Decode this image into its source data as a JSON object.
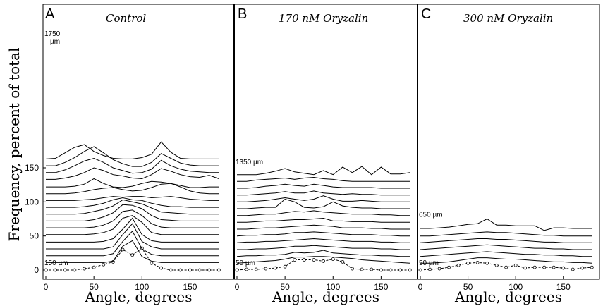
{
  "chart_data": {
    "type": "line",
    "ylabel": "Frequency, percent of total",
    "ylim": [
      0,
      190
    ],
    "yticks": [
      0,
      50,
      100,
      150
    ],
    "panels": [
      {
        "letter": "A",
        "title": "Control",
        "xlabel": "Angle,  degrees",
        "xticks": [
          0,
          50,
          100,
          150
        ],
        "xlim": [
          0,
          190
        ],
        "x": [
          0,
          10,
          20,
          30,
          40,
          50,
          60,
          70,
          80,
          90,
          100,
          110,
          120,
          130,
          140,
          150,
          160,
          170,
          180
        ],
        "bottom_label": "150 µm",
        "top_label_line1": "1750",
        "top_label_line2": "µm",
        "series": [
          {
            "y": [
              0,
              0,
              0,
              0,
              2,
              4,
              8,
              12,
              30,
              22,
              32,
              10,
              3,
              0,
              0,
              0,
              0,
              0,
              0
            ],
            "markers": true
          },
          {
            "y": [
              11,
              11,
              11,
              11,
              11,
              11,
              11,
              13,
              35,
              43,
              20,
              13,
              11,
              11,
              11,
              11,
              11,
              11,
              11
            ]
          },
          {
            "y": [
              21,
              21,
              21,
              21,
              21,
              21,
              21,
              24,
              42,
              57,
              31,
              23,
              21,
              21,
              21,
              21,
              21,
              21,
              21
            ]
          },
          {
            "y": [
              31,
              31,
              31,
              31,
              31,
              31,
              31,
              34,
              52,
              68,
              42,
              34,
              31,
              31,
              31,
              31,
              31,
              31,
              31
            ]
          },
          {
            "y": [
              41,
              41,
              41,
              41,
              41,
              41,
              42,
              46,
              60,
              76,
              52,
              43,
              41,
              41,
              41,
              41,
              41,
              41,
              41
            ]
          },
          {
            "y": [
              52,
              52,
              52,
              52,
              52,
              53,
              55,
              60,
              76,
              80,
              70,
              55,
              52,
              52,
              52,
              52,
              52,
              52,
              52
            ]
          },
          {
            "y": [
              62,
              62,
              62,
              62,
              62,
              63,
              66,
              72,
              86,
              88,
              80,
              68,
              63,
              62,
              62,
              62,
              62,
              62,
              62
            ]
          },
          {
            "y": [
              72,
              72,
              72,
              72,
              72,
              74,
              78,
              84,
              96,
              95,
              90,
              80,
              74,
              73,
              72,
              72,
              72,
              72,
              72
            ]
          },
          {
            "y": [
              82,
              82,
              82,
              82,
              83,
              86,
              89,
              94,
              103,
              100,
              97,
              91,
              85,
              84,
              83,
              82,
              82,
              82,
              82
            ]
          },
          {
            "y": [
              92,
              92,
              92,
              92,
              93,
              95,
              98,
              103,
              106,
              103,
              102,
              98,
              95,
              93,
              93,
              92,
              92,
              92,
              92
            ]
          },
          {
            "y": [
              102,
              102,
              102,
              102,
              103,
              104,
              106,
              108,
              107,
              108,
              108,
              106,
              107,
              108,
              106,
              104,
              103,
              102,
              102
            ]
          },
          {
            "y": [
              112,
              112,
              112,
              113,
              115,
              118,
              120,
              121,
              118,
              116,
              117,
              121,
              126,
              127,
              122,
              116,
              113,
              112,
              112
            ]
          },
          {
            "y": [
              122,
              122,
              122,
              123,
              126,
              134,
              127,
              122,
              121,
              123,
              127,
              130,
              129,
              127,
              124,
              121,
              121,
              122,
              122
            ]
          },
          {
            "y": [
              133,
              133,
              135,
              138,
              143,
              150,
              146,
              140,
              138,
              135,
              134,
              140,
              149,
              145,
              140,
              137,
              136,
              139,
              134
            ]
          },
          {
            "y": [
              143,
              143,
              147,
              153,
              160,
              164,
              158,
              150,
              146,
              142,
              143,
              148,
              161,
              153,
              148,
              145,
              144,
              143,
              143
            ]
          },
          {
            "y": [
              153,
              153,
              158,
              165,
              174,
              181,
              172,
              162,
              156,
              152,
              152,
              158,
              171,
              164,
              157,
              154,
              153,
              153,
              153
            ]
          },
          {
            "y": [
              163,
              164,
              172,
              180,
              184,
              174,
              168,
              164,
              163,
              163,
              165,
              170,
              188,
              173,
              164,
              163,
              163,
              163,
              163
            ]
          }
        ]
      },
      {
        "letter": "B",
        "title": "170 nM Oryzalin",
        "xlabel": "Angle,  degrees",
        "xticks": [
          0,
          50,
          100,
          150
        ],
        "xlim": [
          0,
          182
        ],
        "x": [
          0,
          10,
          20,
          30,
          40,
          50,
          60,
          70,
          80,
          90,
          100,
          110,
          120,
          130,
          140,
          150,
          160,
          170,
          180
        ],
        "bottom_label": "50 µm",
        "top_label": "1350 µm",
        "series": [
          {
            "y": [
              0,
              1,
              1,
              2,
              3,
              5,
              15,
              15,
              15,
              13,
              16,
              12,
              2,
              1,
              1,
              0,
              0,
              0,
              0
            ],
            "markers": true
          },
          {
            "y": [
              10,
              11,
              12,
              13,
              14,
              16,
              19,
              19,
              20,
              20,
              19,
              18,
              17,
              15,
              14,
              13,
              12,
              11,
              10
            ]
          },
          {
            "y": [
              20,
              21,
              21,
              22,
              22,
              23,
              26,
              25,
              26,
              29,
              25,
              24,
              23,
              22,
              22,
              21,
              21,
              20,
              20
            ]
          },
          {
            "y": [
              30,
              30,
              31,
              31,
              32,
              33,
              35,
              35,
              36,
              35,
              34,
              33,
              32,
              32,
              32,
              31,
              31,
              30,
              30
            ]
          },
          {
            "y": [
              40,
              41,
              41,
              42,
              42,
              43,
              44,
              45,
              46,
              45,
              44,
              43,
              42,
              42,
              42,
              41,
              41,
              40,
              40
            ]
          },
          {
            "y": [
              50,
              51,
              51,
              52,
              52,
              53,
              55,
              55,
              56,
              55,
              54,
              53,
              52,
              52,
              52,
              51,
              51,
              50,
              50
            ]
          },
          {
            "y": [
              60,
              60,
              61,
              62,
              62,
              63,
              64,
              65,
              66,
              65,
              64,
              62,
              62,
              62,
              61,
              61,
              60,
              60,
              60
            ]
          },
          {
            "y": [
              70,
              70,
              71,
              72,
              72,
              73,
              74,
              74,
              75,
              76,
              72,
              72,
              71,
              71,
              71,
              70,
              70,
              70,
              70
            ]
          },
          {
            "y": [
              80,
              80,
              81,
              82,
              82,
              84,
              86,
              85,
              87,
              85,
              84,
              83,
              82,
              82,
              82,
              81,
              81,
              80,
              80
            ]
          },
          {
            "y": [
              90,
              90,
              91,
              92,
              92,
              104,
              100,
              92,
              91,
              93,
              100,
              94,
              92,
              91,
              91,
              90,
              90,
              90,
              90
            ]
          },
          {
            "y": [
              100,
              100,
              101,
              102,
              104,
              106,
              104,
              102,
              104,
              109,
              104,
              101,
              101,
              102,
              101,
              100,
              100,
              100,
              100
            ]
          },
          {
            "y": [
              110,
              110,
              111,
              112,
              113,
              115,
              113,
              113,
              116,
              113,
              112,
              111,
              112,
              111,
              111,
              110,
              110,
              110,
              110
            ]
          },
          {
            "y": [
              120,
              120,
              121,
              123,
              124,
              126,
              124,
              123,
              126,
              124,
              122,
              121,
              121,
              121,
              121,
              120,
              120,
              120,
              120
            ]
          },
          {
            "y": [
              130,
              130,
              132,
              133,
              134,
              135,
              133,
              135,
              136,
              134,
              133,
              131,
              130,
              130,
              130,
              130,
              130,
              130,
              130
            ]
          },
          {
            "y": [
              140,
              140,
              140,
              142,
              145,
              149,
              144,
              142,
              140,
              146,
              140,
              151,
              143,
              152,
              140,
              151,
              141,
              141,
              143
            ]
          }
        ]
      },
      {
        "letter": "C",
        "title": "300 nM Oryzalin",
        "xlabel": "Angle,  degrees",
        "xticks": [
          0,
          50,
          100,
          150
        ],
        "xlim": [
          0,
          182
        ],
        "x": [
          0,
          10,
          20,
          30,
          40,
          50,
          60,
          70,
          80,
          90,
          100,
          110,
          120,
          130,
          140,
          150,
          160,
          170,
          180
        ],
        "bottom_label": "50 µm",
        "top_label": "650 µm",
        "series": [
          {
            "y": [
              0,
              1,
              2,
              4,
              7,
              10,
              11,
              10,
              7,
              4,
              7,
              3,
              4,
              4,
              4,
              3,
              1,
              3,
              4
            ],
            "markers": true
          },
          {
            "y": [
              10,
              10,
              11,
              12,
              14,
              16,
              18,
              18,
              17,
              16,
              16,
              15,
              14,
              13,
              12,
              12,
              11,
              11,
              10
            ]
          },
          {
            "y": [
              20,
              21,
              22,
              23,
              24,
              25,
              26,
              27,
              26,
              25,
              24,
              23,
              23,
              22,
              22,
              21,
              21,
              20,
              20
            ]
          },
          {
            "y": [
              30,
              31,
              32,
              33,
              34,
              35,
              36,
              37,
              36,
              35,
              34,
              33,
              32,
              32,
              31,
              31,
              30,
              30,
              30
            ]
          },
          {
            "y": [
              40,
              41,
              42,
              43,
              44,
              45,
              46,
              46,
              45,
              45,
              44,
              43,
              42,
              41,
              41,
              40,
              40,
              40,
              40
            ]
          },
          {
            "y": [
              50,
              50,
              51,
              52,
              53,
              54,
              55,
              56,
              55,
              55,
              54,
              53,
              52,
              51,
              51,
              50,
              50,
              50,
              50
            ]
          },
          {
            "y": [
              61,
              61,
              62,
              63,
              65,
              67,
              68,
              75,
              66,
              66,
              65,
              65,
              65,
              58,
              62,
              62,
              61,
              61,
              61
            ]
          }
        ]
      }
    ]
  }
}
